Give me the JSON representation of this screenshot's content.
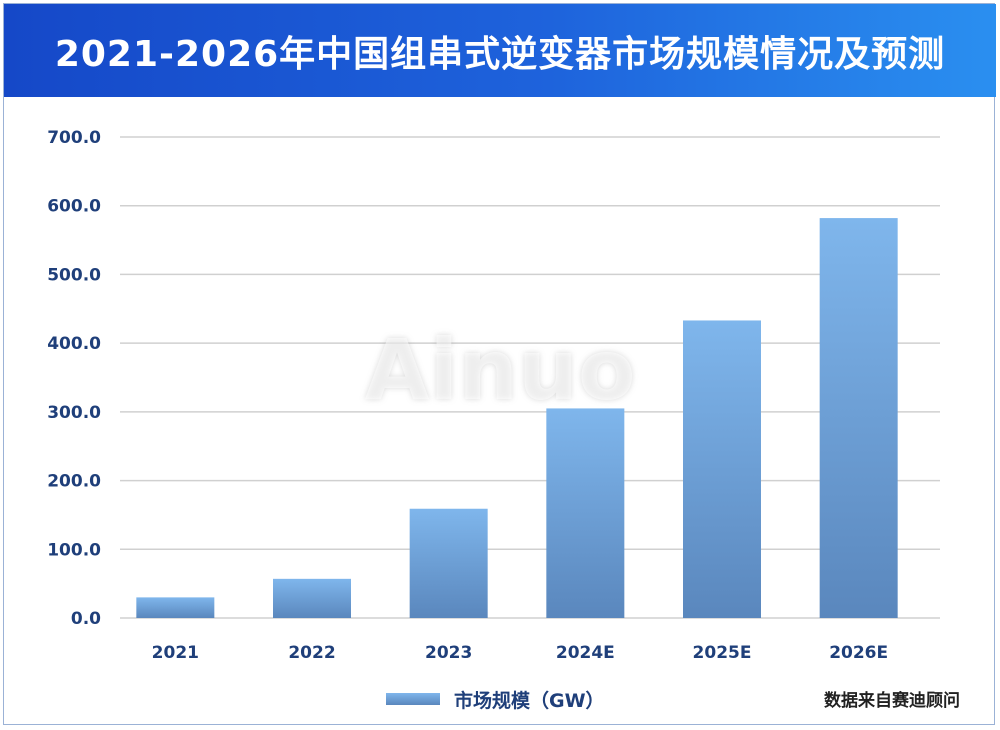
{
  "header": {
    "title": "2021-2026年中国组串式逆变器市场规模情况及预测"
  },
  "watermark": "Ainuo",
  "footer": {
    "source": "数据来自赛迪顾问"
  },
  "colors": {
    "banner": "#1e63dc",
    "bar_top": "#7fb6ec",
    "bar_bottom": "#5a87bd",
    "axis_text": "#1f3f7a",
    "grid": "#d0d0d0"
  },
  "chart_data": {
    "type": "bar",
    "title": "2021-2026年中国组串式逆变器市场规模情况及预测",
    "categories": [
      "2021",
      "2022",
      "2023",
      "2024E",
      "2025E",
      "2026E"
    ],
    "series": [
      {
        "name": "市场规模（GW）",
        "values": [
          30,
          57,
          159,
          305,
          433,
          582
        ]
      }
    ],
    "ylim": [
      0,
      700
    ],
    "yticks": [
      "0.0",
      "100.0",
      "200.0",
      "300.0",
      "400.0",
      "500.0",
      "600.0",
      "700.0"
    ],
    "xlabel": "",
    "ylabel": "",
    "grid": true,
    "legend": "bottom-center"
  }
}
